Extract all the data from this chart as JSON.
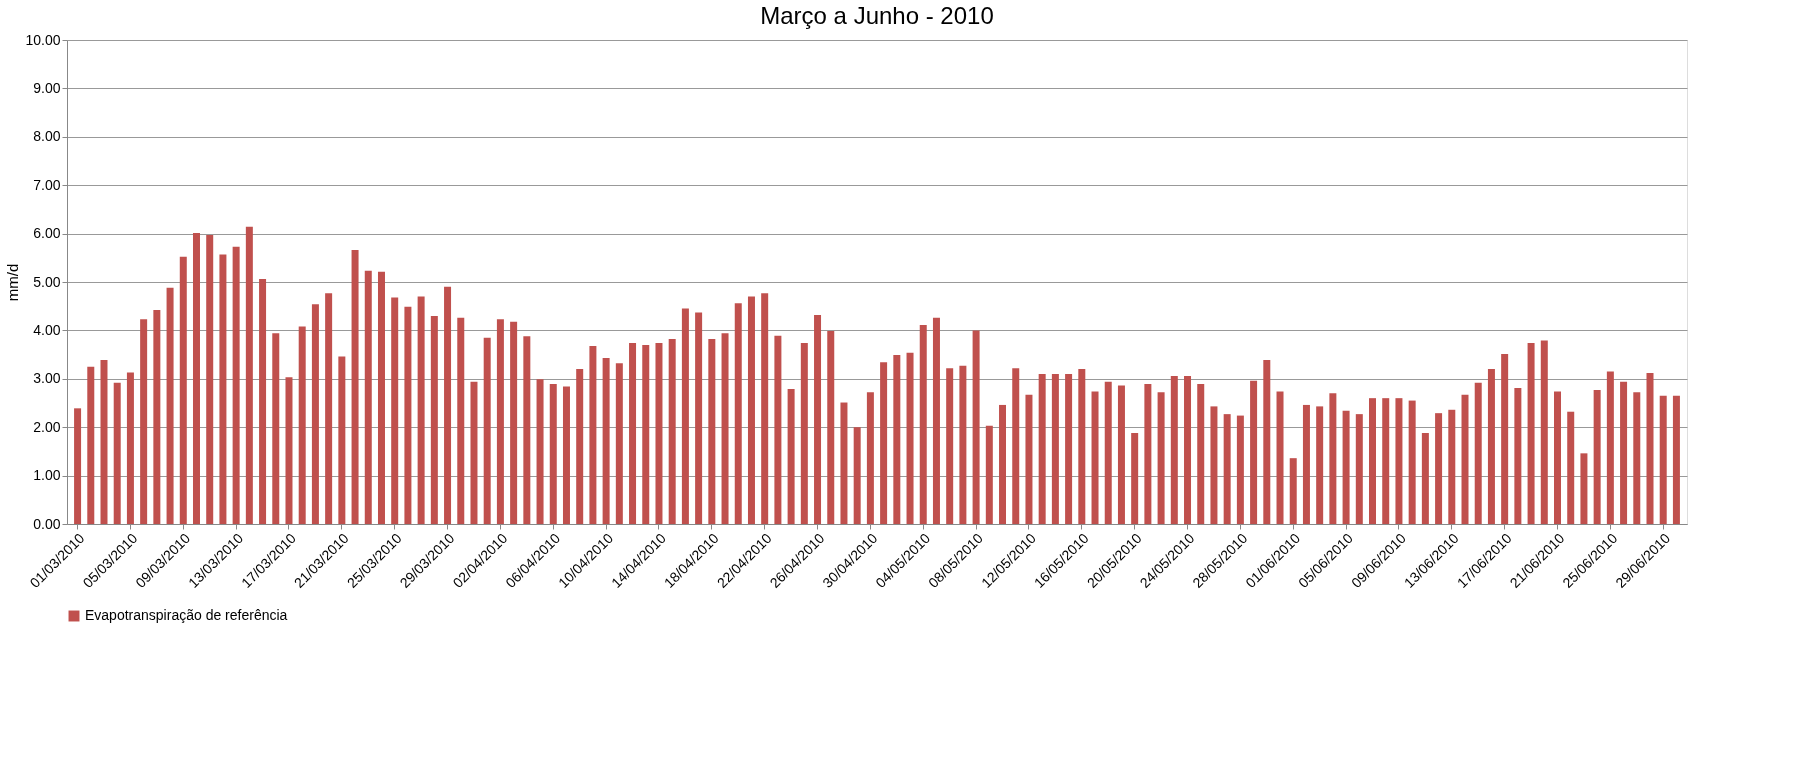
{
  "chart_data": {
    "type": "bar",
    "title": "Março a Junho - 2010",
    "ylabel": "mm/d",
    "categories": [
      "01/03/2010",
      null,
      null,
      null,
      "05/03/2010",
      null,
      null,
      null,
      "09/03/2010",
      null,
      null,
      null,
      "13/03/2010",
      null,
      null,
      null,
      "17/03/2010",
      null,
      null,
      null,
      "21/03/2010",
      null,
      null,
      null,
      "25/03/2010",
      null,
      null,
      null,
      "29/03/2010",
      null,
      null,
      null,
      "02/04/2010",
      null,
      null,
      null,
      "06/04/2010",
      null,
      null,
      null,
      "10/04/2010",
      null,
      null,
      null,
      "14/04/2010",
      null,
      null,
      null,
      "18/04/2010",
      null,
      null,
      null,
      "22/04/2010",
      null,
      null,
      null,
      "26/04/2010",
      null,
      null,
      null,
      "30/04/2010",
      null,
      null,
      null,
      "04/05/2010",
      null,
      null,
      null,
      "08/05/2010",
      null,
      null,
      null,
      "12/05/2010",
      null,
      null,
      null,
      "16/05/2010",
      null,
      null,
      null,
      "20/05/2010",
      null,
      null,
      null,
      "24/05/2010",
      null,
      null,
      null,
      "28/05/2010",
      null,
      null,
      null,
      "01/06/2010",
      null,
      null,
      null,
      "05/06/2010",
      null,
      null,
      null,
      "09/06/2010",
      null,
      null,
      null,
      "13/06/2010",
      null,
      null,
      null,
      "17/06/2010",
      null,
      null,
      null,
      "21/06/2010",
      null,
      null,
      null,
      "25/06/2010",
      null,
      null,
      null,
      "29/06/2010",
      null
    ],
    "series": [
      {
        "name": "Evapotranspiração de referência",
        "color": "#c0504d",
        "values": [
          2.39,
          3.25,
          3.39,
          2.92,
          3.13,
          4.23,
          4.42,
          4.88,
          5.52,
          6.01,
          5.97,
          5.57,
          5.73,
          6.14,
          5.06,
          3.94,
          3.03,
          4.08,
          4.54,
          4.77,
          3.46,
          5.66,
          5.23,
          5.21,
          4.68,
          4.49,
          4.7,
          4.3,
          4.9,
          4.26,
          2.94,
          3.85,
          4.23,
          4.18,
          3.88,
          2.99,
          2.89,
          2.84,
          3.2,
          3.68,
          3.43,
          3.32,
          3.74,
          3.7,
          3.74,
          3.82,
          4.45,
          4.37,
          3.82,
          3.94,
          4.56,
          4.7,
          4.77,
          3.89,
          2.79,
          3.74,
          4.32,
          3.99,
          2.51,
          2.0,
          2.72,
          3.34,
          3.49,
          3.54,
          4.11,
          4.26,
          3.22,
          3.27,
          4.0,
          2.03,
          2.46,
          3.22,
          2.67,
          3.1,
          3.1,
          3.1,
          3.2,
          2.74,
          2.94,
          2.86,
          1.88,
          2.89,
          2.72,
          3.06,
          3.06,
          2.89,
          2.43,
          2.27,
          2.24,
          2.96,
          3.39,
          2.74,
          1.36,
          2.46,
          2.43,
          2.7,
          2.34,
          2.27,
          2.6,
          2.6,
          2.6,
          2.55,
          1.88,
          2.29,
          2.36,
          2.67,
          2.92,
          3.2,
          3.51,
          2.81,
          3.74,
          3.79,
          2.74,
          2.32,
          1.46,
          2.77,
          3.15,
          2.94,
          2.72,
          3.12,
          2.65,
          2.65
        ]
      }
    ],
    "ylim": [
      0,
      10
    ],
    "yticks": [
      {
        "value": 0,
        "label": "0.00"
      },
      {
        "value": 1,
        "label": "1.00"
      },
      {
        "value": 2,
        "label": "2.00"
      },
      {
        "value": 3,
        "label": "3.00"
      },
      {
        "value": 4,
        "label": "4.00"
      },
      {
        "value": 5,
        "label": "5.00"
      },
      {
        "value": 6,
        "label": "6.00"
      },
      {
        "value": 7,
        "label": "7.00"
      },
      {
        "value": 8,
        "label": "8.00"
      },
      {
        "value": 9,
        "label": "9.00"
      },
      {
        "value": 10,
        "label": "10.00"
      }
    ],
    "grid": "y",
    "legend": "bottom"
  }
}
